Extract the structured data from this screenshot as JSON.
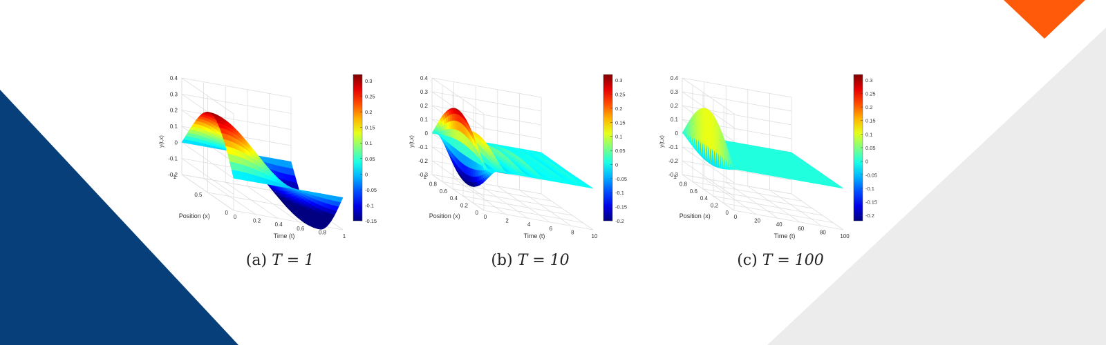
{
  "colors": {
    "navy": "#063f7a",
    "orange": "#ff5a0a",
    "light_gray": "#ececec",
    "colormap": "jet"
  },
  "chart_data": [
    {
      "type": "surface",
      "caption_label": "(a)",
      "caption_math": "T = 1",
      "zlabel": "y(t,x)",
      "ylabel_axis": "Position (x)",
      "xlabel_axis": "Time (t)",
      "t_range": [
        0,
        1
      ],
      "x_range": [
        0,
        1
      ],
      "z_range": [
        -0.2,
        0.4
      ],
      "t_ticks": [
        "0",
        "0.2",
        "0.4",
        "0.6",
        "0.8",
        "1"
      ],
      "x_ticks": [
        "0",
        "0.5",
        "1"
      ],
      "z_ticks": [
        "-0.2",
        "-0.1",
        "0",
        "0.1",
        "0.2",
        "0.3",
        "0.4"
      ],
      "colorbar_range": [
        -0.15,
        0.32
      ],
      "colorbar_ticks": [
        "0.3",
        "0.25",
        "0.2",
        "0.15",
        "0.1",
        "0.05",
        "0",
        "-0.05",
        "-0.1",
        "-0.15"
      ],
      "grid": true,
      "periods": 1
    },
    {
      "type": "surface",
      "caption_label": "(b)",
      "caption_math": "T = 10",
      "zlabel": "y(t,x)",
      "ylabel_axis": "Position (x)",
      "xlabel_axis": "Time (t)",
      "t_range": [
        0,
        10
      ],
      "x_range": [
        0,
        1
      ],
      "z_range": [
        -0.3,
        0.4
      ],
      "t_ticks": [
        "0",
        "2",
        "4",
        "6",
        "8",
        "10"
      ],
      "x_ticks": [
        "0",
        "0.2",
        "0.4",
        "0.6",
        "0.8",
        "1"
      ],
      "z_ticks": [
        "-0.3",
        "-0.2",
        "-0.1",
        "0",
        "0.1",
        "0.2",
        "0.3",
        "0.4"
      ],
      "colorbar_range": [
        -0.2,
        0.32
      ],
      "colorbar_ticks": [
        "0.3",
        "0.25",
        "0.2",
        "0.15",
        "0.1",
        "0.05",
        "0",
        "-0.05",
        "-0.1",
        "-0.15",
        "-0.2"
      ],
      "grid": true,
      "periods": 10
    },
    {
      "type": "surface",
      "caption_label": "(c)",
      "caption_math": "T = 100",
      "zlabel": "y(t,x)",
      "ylabel_axis": "Position (x)",
      "xlabel_axis": "Time (t)",
      "t_range": [
        0,
        100
      ],
      "x_range": [
        0,
        1
      ],
      "z_range": [
        -0.3,
        0.4
      ],
      "t_ticks": [
        "0",
        "20",
        "40",
        "60",
        "80",
        "100"
      ],
      "x_ticks": [
        "0",
        "0.2",
        "0.4",
        "0.6",
        "0.8",
        "1"
      ],
      "z_ticks": [
        "-0.3",
        "-0.2",
        "-0.1",
        "0",
        "0.1",
        "0.2",
        "0.3",
        "0.4"
      ],
      "colorbar_range": [
        -0.22,
        0.32
      ],
      "colorbar_ticks": [
        "0.3",
        "0.25",
        "0.2",
        "0.15",
        "0.1",
        "0.05",
        "0",
        "-0.05",
        "-0.1",
        "-0.15",
        "-0.2"
      ],
      "grid": true,
      "periods": 100
    }
  ]
}
